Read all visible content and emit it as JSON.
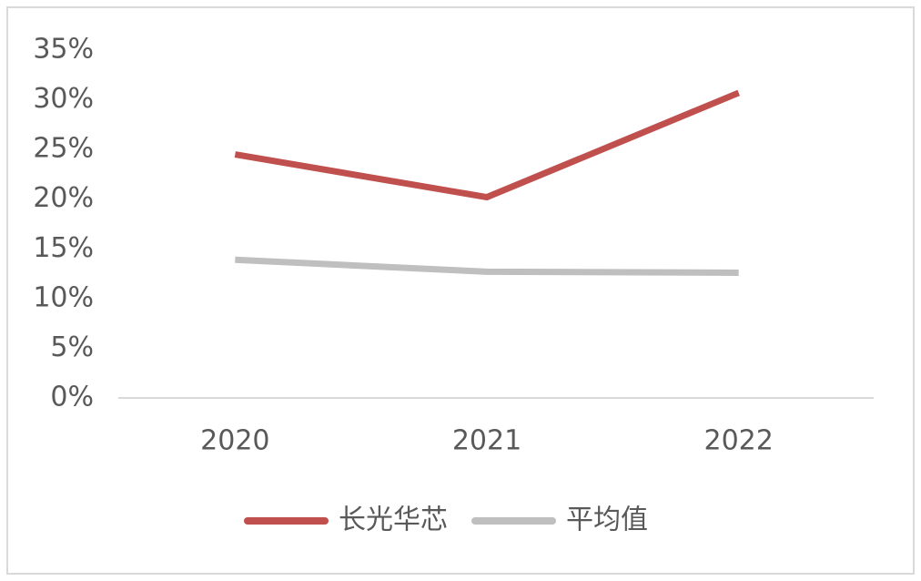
{
  "chart_data": {
    "type": "line",
    "categories": [
      "2020",
      "2021",
      "2022"
    ],
    "series": [
      {
        "name": "长光华芯",
        "color": "#c0504d",
        "values": [
          24.5,
          20.2,
          30.7
        ]
      },
      {
        "name": "平均值",
        "color": "#bfbfbf",
        "values": [
          13.9,
          12.7,
          12.6
        ]
      }
    ],
    "ylim": [
      0,
      35
    ],
    "yticks": [
      {
        "value": 0,
        "label": "0%"
      },
      {
        "value": 5,
        "label": "5%"
      },
      {
        "value": 10,
        "label": "10%"
      },
      {
        "value": 15,
        "label": "15%"
      },
      {
        "value": 20,
        "label": "20%"
      },
      {
        "value": 25,
        "label": "25%"
      },
      {
        "value": 30,
        "label": "30%"
      },
      {
        "value": 35,
        "label": "35%"
      }
    ],
    "legend": "bottom"
  }
}
